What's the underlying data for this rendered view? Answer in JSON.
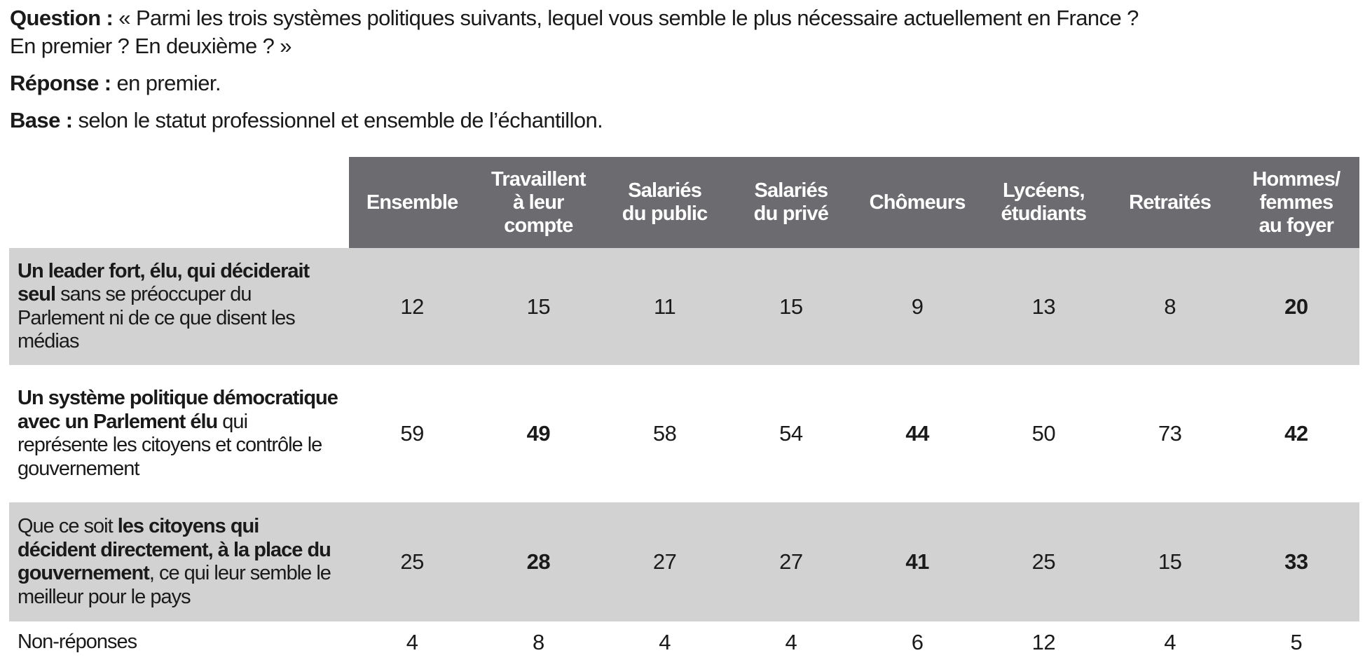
{
  "intro": {
    "question_label": "Question :",
    "question_line1": " « Parmi les trois systèmes politiques suivants, lequel vous semble le plus nécessaire actuellement en France ?",
    "question_line2": "En premier ? En deuxième ? »",
    "response_label": "Réponse :",
    "response_text": " en premier.",
    "base_label": "Base :",
    "base_text": " selon le statut professionnel et ensemble de l’échantillon."
  },
  "colors": {
    "header_bg": "#6b6b70",
    "header_text": "#ffffff",
    "shaded_row_bg": "#d2d2d2",
    "body_text": "#1a1a1a"
  },
  "table": {
    "columns": [
      [
        "Ensemble"
      ],
      [
        "Travaillent",
        "à leur",
        "compte"
      ],
      [
        "Salariés",
        "du public"
      ],
      [
        "Salariés",
        "du privé"
      ],
      [
        "Chômeurs"
      ],
      [
        "Lycéens,",
        "étudiants"
      ],
      [
        "Retraités"
      ],
      [
        "Hommes/",
        "femmes",
        "au foyer"
      ]
    ],
    "rows": [
      {
        "label_pre": "",
        "label_bold": "Un leader fort, élu, qui déciderait seul",
        "label_post": " sans se préoccuper du Parlement ni de ce que disent les médias",
        "values": [
          "12",
          "15",
          "11",
          "15",
          "9",
          "13",
          "8",
          "20"
        ],
        "bold_value_indices": [
          7
        ]
      },
      {
        "label_pre": "",
        "label_bold": "Un système politique démocratique avec un Parlement élu",
        "label_post": " qui représente les citoyens et contrôle le gouvernement",
        "values": [
          "59",
          "49",
          "58",
          "54",
          "44",
          "50",
          "73",
          "42"
        ],
        "bold_value_indices": [
          1,
          4,
          7
        ]
      },
      {
        "label_pre": "Que ce soit ",
        "label_bold": "les citoyens qui décident directement, à la place du gouvernement",
        "label_post": ", ce qui leur semble le meilleur pour le pays",
        "values": [
          "25",
          "28",
          "27",
          "27",
          "41",
          "25",
          "15",
          "33"
        ],
        "bold_value_indices": [
          1,
          4,
          7
        ]
      },
      {
        "label_pre": "Non-réponses",
        "label_bold": "",
        "label_post": "",
        "values": [
          "4",
          "8",
          "4",
          "4",
          "6",
          "12",
          "4",
          "5"
        ],
        "bold_value_indices": []
      }
    ]
  }
}
